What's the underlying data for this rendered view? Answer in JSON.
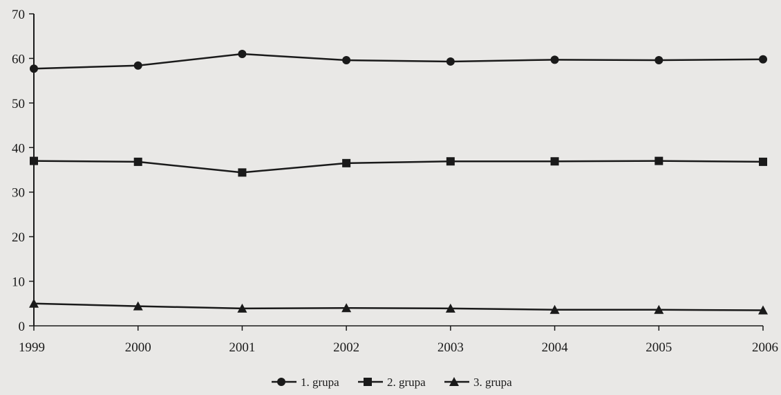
{
  "chart_data": {
    "type": "line",
    "title": "",
    "xlabel": "",
    "ylabel": "",
    "x": [
      "1999",
      "2000",
      "2001",
      "2002",
      "2003",
      "2004",
      "2005",
      "2006"
    ],
    "ylim": [
      0,
      70
    ],
    "yticks": [
      0,
      10,
      20,
      30,
      40,
      50,
      60,
      70
    ],
    "grid": false,
    "legend_position": "bottom",
    "series": [
      {
        "name": "1. grupa",
        "marker": "circle",
        "values": [
          57.7,
          58.4,
          61.0,
          59.6,
          59.3,
          59.7,
          59.6,
          59.8
        ]
      },
      {
        "name": "2. grupa",
        "marker": "square",
        "values": [
          37.0,
          36.8,
          34.4,
          36.5,
          36.9,
          36.9,
          37.0,
          36.8
        ]
      },
      {
        "name": "3. grupa",
        "marker": "triangle",
        "values": [
          5.0,
          4.4,
          3.9,
          4.0,
          3.9,
          3.6,
          3.6,
          3.5
        ]
      }
    ],
    "colors": {
      "line": "#1a1a1a",
      "background": "#e9e8e6"
    }
  }
}
